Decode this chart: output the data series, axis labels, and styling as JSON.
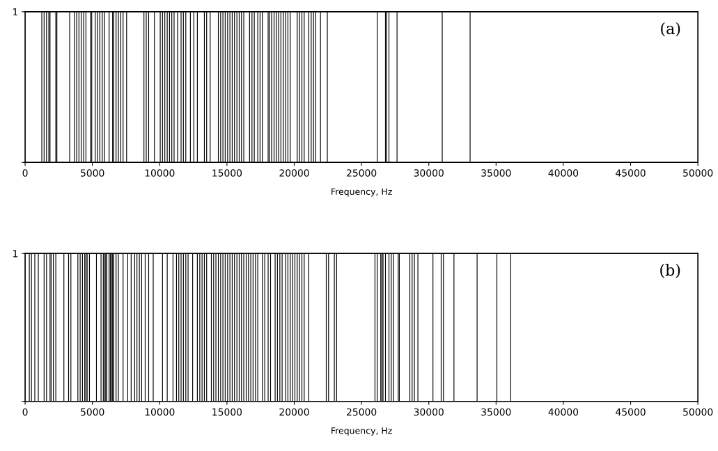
{
  "chart_data": [
    {
      "type": "bar",
      "xlabel": "Frequency, Hz",
      "annotations": [
        "(a)"
      ],
      "xlim": [
        0,
        50000
      ],
      "ylim": [
        0,
        1
      ],
      "xticks": [
        0,
        5000,
        10000,
        15000,
        20000,
        25000,
        30000,
        35000,
        40000,
        45000,
        50000
      ],
      "yticks": [
        {
          "value": 0,
          "label": null
        },
        1
      ],
      "grid": false,
      "series": [
        {
          "color": "#000000",
          "x": [
            1240,
            1410,
            1590,
            1760,
            1850,
            2280,
            2360,
            3310,
            3660,
            3830,
            4000,
            4170,
            4350,
            4520,
            4860,
            4950,
            5210,
            5380,
            5550,
            5730,
            5900,
            6240,
            6500,
            6590,
            6760,
            6930,
            7110,
            7280,
            7540,
            8830,
            9000,
            9180,
            9610,
            10040,
            10210,
            10380,
            10560,
            10730,
            10900,
            11070,
            11330,
            11590,
            11760,
            11940,
            12280,
            12540,
            12800,
            13320,
            13490,
            13750,
            14360,
            14530,
            14700,
            14870,
            15050,
            15220,
            15390,
            15560,
            15740,
            15910,
            16080,
            16250,
            16680,
            16860,
            17030,
            17290,
            17460,
            17630,
            18060,
            18150,
            18320,
            18500,
            18670,
            18840,
            19010,
            19190,
            19360,
            19530,
            19700,
            20220,
            20390,
            20570,
            20740,
            21080,
            21260,
            21430,
            21600,
            21950,
            22460,
            26170,
            26780,
            26860,
            27040,
            27640,
            31000,
            33070
          ],
          "values": [
            1,
            1,
            1,
            1,
            1,
            1,
            1,
            1,
            1,
            1,
            1,
            1,
            1,
            1,
            1,
            1,
            1,
            1,
            1,
            1,
            1,
            1,
            1,
            1,
            1,
            1,
            1,
            1,
            1,
            1,
            1,
            1,
            1,
            1,
            1,
            1,
            1,
            1,
            1,
            1,
            1,
            1,
            1,
            1,
            1,
            1,
            1,
            1,
            1,
            1,
            1,
            1,
            1,
            1,
            1,
            1,
            1,
            1,
            1,
            1,
            1,
            1,
            1,
            1,
            1,
            1,
            1,
            1,
            1,
            1,
            1,
            1,
            1,
            1,
            1,
            1,
            1,
            1,
            1,
            1,
            1,
            1,
            1,
            1,
            1,
            1,
            1,
            1,
            1,
            1,
            1,
            1,
            1,
            1,
            1,
            1
          ]
        }
      ]
    },
    {
      "type": "bar",
      "xlabel": "Frequency, Hz",
      "annotations": [
        "(b)"
      ],
      "xlim": [
        0,
        50000
      ],
      "ylim": [
        0,
        1
      ],
      "xticks": [
        0,
        5000,
        10000,
        15000,
        20000,
        25000,
        30000,
        35000,
        40000,
        45000,
        50000
      ],
      "yticks": [
        {
          "value": 0,
          "label": null
        },
        1
      ],
      "grid": false,
      "series": [
        {
          "color": "#000000",
          "x": [
            310,
            470,
            720,
            980,
            1410,
            1590,
            1850,
            1930,
            2100,
            2280,
            2880,
            3230,
            3400,
            3920,
            4090,
            4260,
            4430,
            4520,
            4610,
            4780,
            5300,
            5640,
            5810,
            5900,
            5990,
            6070,
            6240,
            6330,
            6420,
            6500,
            6590,
            6760,
            6930,
            7280,
            7620,
            7880,
            8140,
            8310,
            8490,
            8660,
            8920,
            9180,
            9520,
            10210,
            10560,
            10990,
            11250,
            11420,
            11590,
            11760,
            11940,
            12110,
            12450,
            12800,
            12980,
            13150,
            13320,
            13490,
            13840,
            14010,
            14180,
            14360,
            14530,
            14700,
            14870,
            15050,
            15220,
            15390,
            15560,
            15740,
            15910,
            16080,
            16250,
            16430,
            16600,
            16770,
            16940,
            17120,
            17290,
            17630,
            17810,
            18060,
            18240,
            18580,
            18750,
            18930,
            19100,
            19360,
            19530,
            19700,
            19880,
            20050,
            20220,
            20390,
            20570,
            20740,
            21080,
            22380,
            22550,
            22980,
            23150,
            26000,
            26170,
            26430,
            26520,
            26600,
            26780,
            27040,
            27210,
            27380,
            27730,
            27810,
            28590,
            28760,
            28930,
            29190,
            30310,
            30920,
            31090,
            31870,
            33590,
            35060,
            36090
          ],
          "values": [
            1,
            1,
            1,
            1,
            1,
            1,
            1,
            1,
            1,
            1,
            1,
            1,
            1,
            1,
            1,
            1,
            1,
            1,
            1,
            1,
            1,
            1,
            1,
            1,
            1,
            1,
            1,
            1,
            1,
            1,
            1,
            1,
            1,
            1,
            1,
            1,
            1,
            1,
            1,
            1,
            1,
            1,
            1,
            1,
            1,
            1,
            1,
            1,
            1,
            1,
            1,
            1,
            1,
            1,
            1,
            1,
            1,
            1,
            1,
            1,
            1,
            1,
            1,
            1,
            1,
            1,
            1,
            1,
            1,
            1,
            1,
            1,
            1,
            1,
            1,
            1,
            1,
            1,
            1,
            1,
            1,
            1,
            1,
            1,
            1,
            1,
            1,
            1,
            1,
            1,
            1,
            1,
            1,
            1,
            1,
            1,
            1,
            1,
            1,
            1,
            1,
            1,
            1,
            1,
            1,
            1,
            1,
            1,
            1,
            1,
            1,
            1,
            1,
            1,
            1,
            1,
            1,
            1,
            1,
            1,
            1,
            1,
            1
          ]
        }
      ]
    }
  ]
}
